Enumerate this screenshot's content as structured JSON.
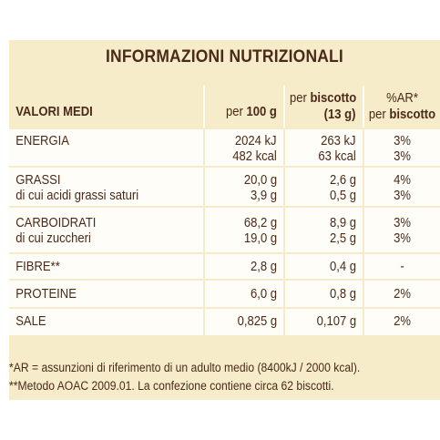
{
  "title": "INFORMAZIONI NUTRIZIONALI",
  "header": {
    "col0": "VALORI MEDI",
    "col1_pre": "per ",
    "col1_bold": "100 g",
    "col2_line1_pre": "per ",
    "col2_line1_bold": "biscotto",
    "col2_line2": "(13 g)",
    "col3_line1": "%AR*",
    "col3_line2_pre": "per ",
    "col3_line2_bold": "biscotto"
  },
  "rows": [
    {
      "label": [
        "ENERGIA",
        ""
      ],
      "per100": [
        "2024 kJ",
        "482 kcal"
      ],
      "perBiscotto": [
        "263 kJ",
        "63 kcal"
      ],
      "ar": [
        "3%",
        "3%"
      ]
    },
    {
      "label": [
        "GRASSI",
        "di cui acidi grassi saturi"
      ],
      "per100": [
        "20,0 g",
        "3,9 g"
      ],
      "perBiscotto": [
        "2,6 g",
        "0,5 g"
      ],
      "ar": [
        "4%",
        "3%"
      ]
    },
    {
      "label": [
        "CARBOIDRATI",
        "di cui zuccheri"
      ],
      "per100": [
        "68,2 g",
        "19,0 g"
      ],
      "perBiscotto": [
        "8,9 g",
        "2,5 g"
      ],
      "ar": [
        "3%",
        "3%"
      ]
    },
    {
      "label": [
        "FIBRE**"
      ],
      "per100": [
        "2,8 g"
      ],
      "perBiscotto": [
        "0,4 g"
      ],
      "ar": [
        "-"
      ]
    },
    {
      "label": [
        "PROTEINE"
      ],
      "per100": [
        "6,0 g"
      ],
      "perBiscotto": [
        "0,8 g"
      ],
      "ar": [
        "2%"
      ]
    },
    {
      "label": [
        "SALE"
      ],
      "per100": [
        "0,825 g"
      ],
      "perBiscotto": [
        "0,107 g"
      ],
      "ar": [
        "2%"
      ]
    }
  ],
  "footnotes": [
    "*AR = assunzioni di riferimento di un adulto medio (8400kJ / 2000 kcal).",
    "**Metodo AOAC 2009.01. La confezione contiene circa 62 biscotti."
  ]
}
